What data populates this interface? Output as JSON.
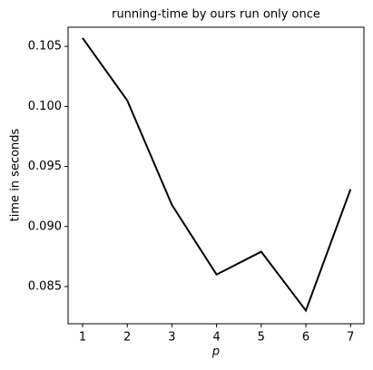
{
  "chart_data": {
    "type": "line",
    "title": "running-time by ours run only once",
    "xlabel": "p",
    "ylabel": "time in seconds",
    "x": [
      1,
      2,
      3,
      4,
      5,
      6,
      7
    ],
    "series": [
      {
        "color": "#000000",
        "values": [
          0.1057,
          0.1005,
          0.0918,
          0.086,
          0.0879,
          0.083,
          0.0931
        ]
      }
    ],
    "xlim": [
      0.675,
      7.3
    ],
    "xticks": [
      1,
      2,
      3,
      4,
      5,
      6,
      7
    ],
    "ylim": [
      0.0819,
      0.1066
    ],
    "yticks": [
      0.085,
      {
        "value": 0.09,
        "label": "0.090"
      },
      0.095,
      {
        "value": 0.1,
        "label": "0.100"
      },
      0.105
    ]
  }
}
